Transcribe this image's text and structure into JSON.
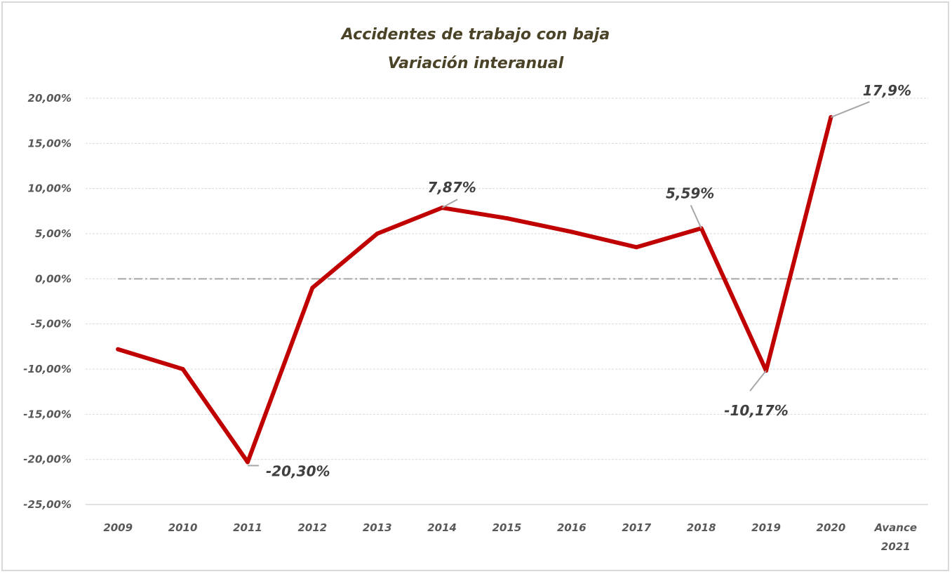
{
  "chart_data": {
    "type": "line",
    "title": "Accidentes de trabajo con baja",
    "subtitle": "Variación interanual",
    "categories": [
      "2009",
      "2010",
      "2011",
      "2012",
      "2013",
      "2014",
      "2015",
      "2016",
      "2017",
      "2018",
      "2019",
      "2020",
      "Avance 2021"
    ],
    "series": [
      {
        "values": [
          -7.8,
          -10.0,
          -20.3,
          -1.0,
          5.0,
          7.87,
          6.7,
          5.2,
          3.5,
          5.59,
          -10.17,
          17.9,
          null
        ]
      }
    ],
    "y_tick_labels": [
      "20,00%",
      "15,00%",
      "10,00%",
      "5,00%",
      "0,00%",
      "-5,00%",
      "-10,00%",
      "-15,00%",
      "-20,00%",
      "-25,00%"
    ],
    "ylim": [
      -25,
      20
    ],
    "data_labels": [
      {
        "index": 2,
        "text": "-20,30%"
      },
      {
        "index": 5,
        "text": "7,87%"
      },
      {
        "index": 9,
        "text": "5,59%"
      },
      {
        "index": 10,
        "text": "-10,17%"
      },
      {
        "index": 11,
        "text": "17,9%"
      }
    ],
    "grid": true,
    "legend": "none",
    "colors": {
      "line": "#c00000",
      "grid": "#d9d9d9",
      "zero_line": "#a6a6a6",
      "leader": "#a6a6a6"
    }
  }
}
